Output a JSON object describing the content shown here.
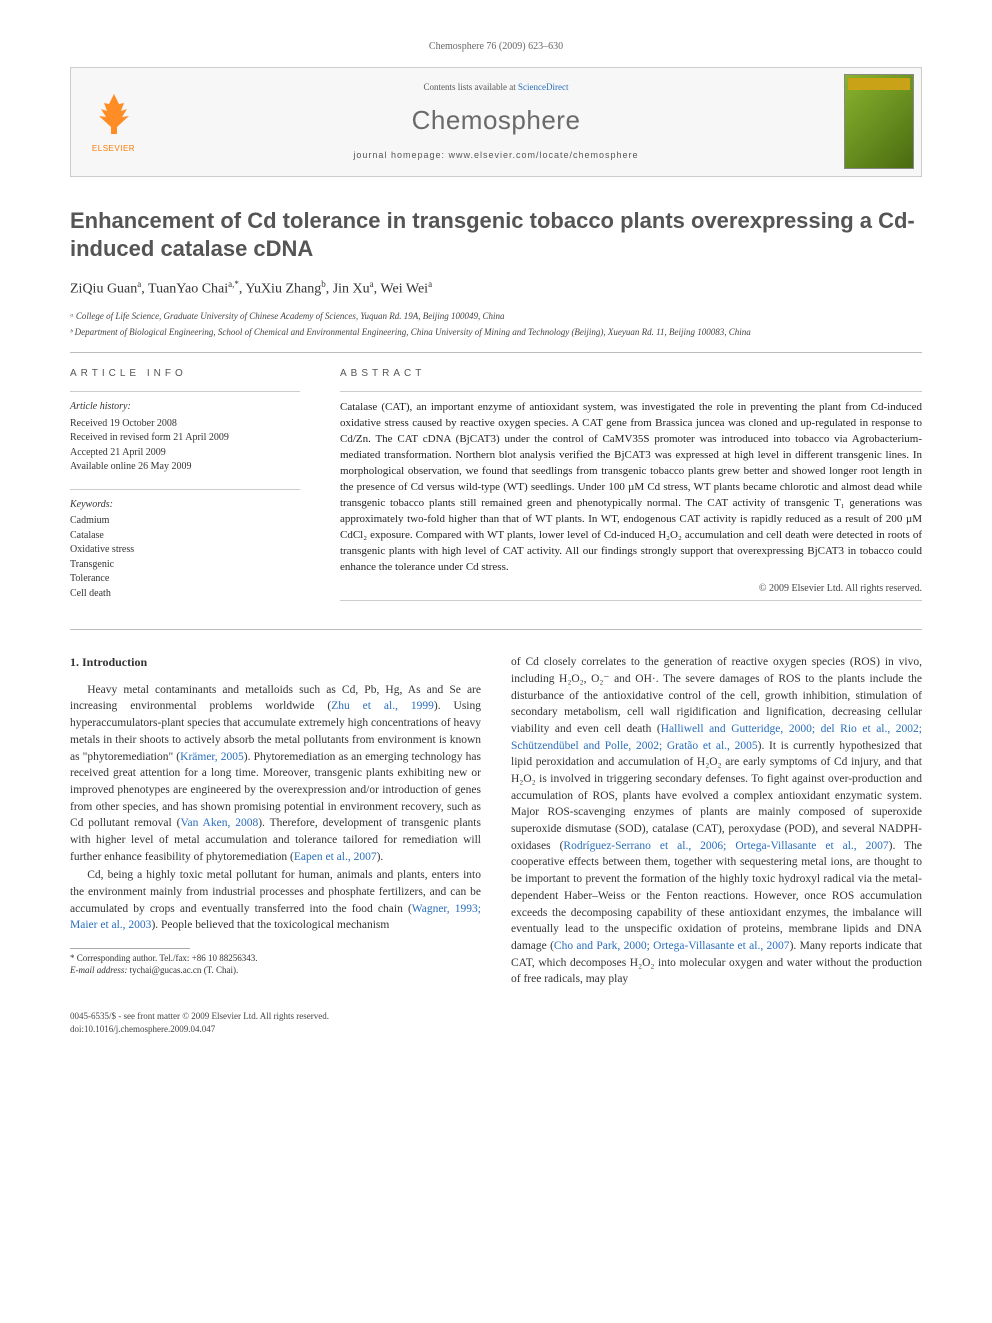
{
  "pageHeader": "Chemosphere 76 (2009) 623–630",
  "masthead": {
    "publisherLabel": "ELSEVIER",
    "contentsPrefix": "Contents lists available at ",
    "contentsLink": "ScienceDirect",
    "journal": "Chemosphere",
    "homepagePrefix": "journal homepage: ",
    "homepageUrl": "www.elsevier.com/locate/chemosphere"
  },
  "title": "Enhancement of Cd tolerance in transgenic tobacco plants overexpressing a Cd-induced catalase cDNA",
  "authorsHtml": "ZiQiu Guan<sup>a</sup>, TuanYao Chai<sup>a,*</sup>, YuXiu Zhang<sup>b</sup>, Jin Xu<sup>a</sup>, Wei Wei<sup>a</sup>",
  "affiliations": [
    "ᵃ College of Life Science, Graduate University of Chinese Academy of Sciences, Yuquan Rd. 19A, Beijing 100049, China",
    "ᵇ Department of Biological Engineering, School of Chemical and Environmental Engineering, China University of Mining and Technology (Beijing), Xueyuan Rd. 11, Beijing 100083, China"
  ],
  "articleInfo": {
    "label": "ARTICLE INFO",
    "historyHead": "Article history:",
    "history": [
      "Received 19 October 2008",
      "Received in revised form 21 April 2009",
      "Accepted 21 April 2009",
      "Available online 26 May 2009"
    ],
    "keywordsHead": "Keywords:",
    "keywords": [
      "Cadmium",
      "Catalase",
      "Oxidative stress",
      "Transgenic",
      "Tolerance",
      "Cell death"
    ]
  },
  "abstract": {
    "label": "ABSTRACT",
    "text": "Catalase (CAT), an important enzyme of antioxidant system, was investigated the role in preventing the plant from Cd-induced oxidative stress caused by reactive oxygen species. A CAT gene from Brassica juncea was cloned and up-regulated in response to Cd/Zn. The CAT cDNA (BjCAT3) under the control of CaMV35S promoter was introduced into tobacco via Agrobacterium-mediated transformation. Northern blot analysis verified the BjCAT3 was expressed at high level in different transgenic lines. In morphological observation, we found that seedlings from transgenic tobacco plants grew better and showed longer root length in the presence of Cd versus wild-type (WT) seedlings. Under 100 µM Cd stress, WT plants became chlorotic and almost dead while transgenic tobacco plants still remained green and phenotypically normal. The CAT activity of transgenic T₁ generations was approximately two-fold higher than that of WT plants. In WT, endogenous CAT activity is rapidly reduced as a result of 200 µM CdCl₂ exposure. Compared with WT plants, lower level of Cd-induced H₂O₂ accumulation and cell death were detected in roots of transgenic plants with high level of CAT activity. All our findings strongly support that overexpressing BjCAT3 in tobacco could enhance the tolerance under Cd stress.",
    "copyright": "© 2009 Elsevier Ltd. All rights reserved."
  },
  "body": {
    "heading": "1. Introduction",
    "col1": [
      "Heavy metal contaminants and metalloids such as Cd, Pb, Hg, As and Se are increasing environmental problems worldwide (<span class='cite'>Zhu et al., 1999</span>). Using hyperaccumulators-plant species that accumulate extremely high concentrations of heavy metals in their shoots to actively absorb the metal pollutants from environment is known as \"phytoremediation\" (<span class='cite'>Krämer, 2005</span>). Phytoremediation as an emerging technology has received great attention for a long time. Moreover, transgenic plants exhibiting new or improved phenotypes are engineered by the overexpression and/or introduction of genes from other species, and has shown promising potential in environment recovery, such as Cd pollutant removal (<span class='cite'>Van Aken, 2008</span>). Therefore, development of transgenic plants with higher level of metal accumulation and tolerance tailored for remediation will further enhance feasibility of phytoremediation (<span class='cite'>Eapen et al., 2007</span>).",
      "Cd, being a highly toxic metal pollutant for human, animals and plants, enters into the environment mainly from industrial processes and phosphate fertilizers, and can be accumulated by crops and eventually transferred into the food chain (<span class='cite'>Wagner, 1993; Maier et al., 2003</span>). People believed that the toxicological mechanism"
    ],
    "col2": [
      "of Cd closely correlates to the generation of reactive oxygen species (ROS) in vivo, including H₂O₂, O₂⁻ and OH·. The severe damages of ROS to the plants include the disturbance of the antioxidative control of the cell, growth inhibition, stimulation of secondary metabolism, cell wall rigidification and lignification, decreasing cellular viability and even cell death (<span class='cite'>Halliwell and Gutteridge, 2000; del Rio et al., 2002; Schützendübel and Polle, 2002; Gratão et al., 2005</span>). It is currently hypothesized that lipid peroxidation and accumulation of H₂O₂ are early symptoms of Cd injury, and that H₂O₂ is involved in triggering secondary defenses. To fight against over-production and accumulation of ROS, plants have evolved a complex antioxidant enzymatic system. Major ROS-scavenging enzymes of plants are mainly composed of superoxide superoxide dismutase (SOD), catalase (CAT), peroxydase (POD), and several NADPH-oxidases (<span class='cite'>Rodríguez-Serrano et al., 2006; Ortega-Villasante et al., 2007</span>). The cooperative effects between them, together with sequestering metal ions, are thought to be important to prevent the formation of the highly toxic hydroxyl radical via the metal-dependent Haber–Weiss or the Fenton reactions. However, once ROS accumulation exceeds the decomposing capability of these antioxidant enzymes, the imbalance will eventually lead to the unspecific oxidation of proteins, membrane lipids and DNA damage (<span class='cite'>Cho and Park, 2000; Ortega-Villasante et al., 2007</span>). Many reports indicate that CAT, which decomposes H₂O₂ into molecular oxygen and water without the production of free radicals, may play"
    ]
  },
  "footnotes": {
    "corr": "* Corresponding author. Tel./fax: +86 10 88256343.",
    "emailLabel": "E-mail address:",
    "email": "tychai@gucas.ac.cn",
    "emailWho": "(T. Chai)."
  },
  "pageFooter": {
    "line1": "0045-6535/$ - see front matter © 2009 Elsevier Ltd. All rights reserved.",
    "line2": "doi:10.1016/j.chemosphere.2009.04.047"
  },
  "colors": {
    "link": "#2a6ebb",
    "elsevierOrange": "#ff7a00",
    "headingGray": "#555",
    "ruleGray": "#bbb"
  }
}
